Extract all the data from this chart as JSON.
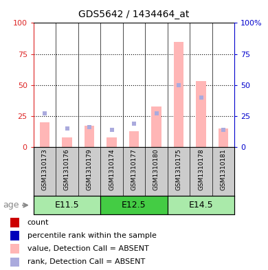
{
  "title": "GDS5642 / 1434464_at",
  "samples": [
    "GSM1310173",
    "GSM1310176",
    "GSM1310179",
    "GSM1310174",
    "GSM1310177",
    "GSM1310180",
    "GSM1310175",
    "GSM1310178",
    "GSM1310181"
  ],
  "age_groups": [
    {
      "label": "E11.5",
      "start": 0,
      "end": 3,
      "color": "#aaeaaa"
    },
    {
      "label": "E12.5",
      "start": 3,
      "end": 6,
      "color": "#44cc44"
    },
    {
      "label": "E14.5",
      "start": 6,
      "end": 9,
      "color": "#aaeaaa"
    }
  ],
  "values_absent": [
    20,
    8,
    17,
    8,
    13,
    33,
    85,
    53,
    15
  ],
  "ranks_absent": [
    27,
    15,
    16,
    14,
    19,
    27,
    50,
    40,
    14
  ],
  "left_axis_color": "#DD2222",
  "right_axis_color": "#0000CC",
  "bar_color_absent": "#FFB6B6",
  "rank_color_absent": "#AAAADD",
  "ylim": [
    0,
    100
  ],
  "yticks": [
    0,
    25,
    50,
    75,
    100
  ],
  "legend_items": [
    {
      "label": "count",
      "color": "#CC0000"
    },
    {
      "label": "percentile rank within the sample",
      "color": "#0000BB"
    },
    {
      "label": "value, Detection Call = ABSENT",
      "color": "#FFB6B6"
    },
    {
      "label": "rank, Detection Call = ABSENT",
      "color": "#AAAADD"
    }
  ],
  "age_label": "age",
  "sample_bg_color": "#CCCCCC",
  "plot_border_color": "#000000",
  "title_fontsize": 10,
  "label_fontsize": 6.5,
  "axis_fontsize": 8,
  "legend_fontsize": 8
}
